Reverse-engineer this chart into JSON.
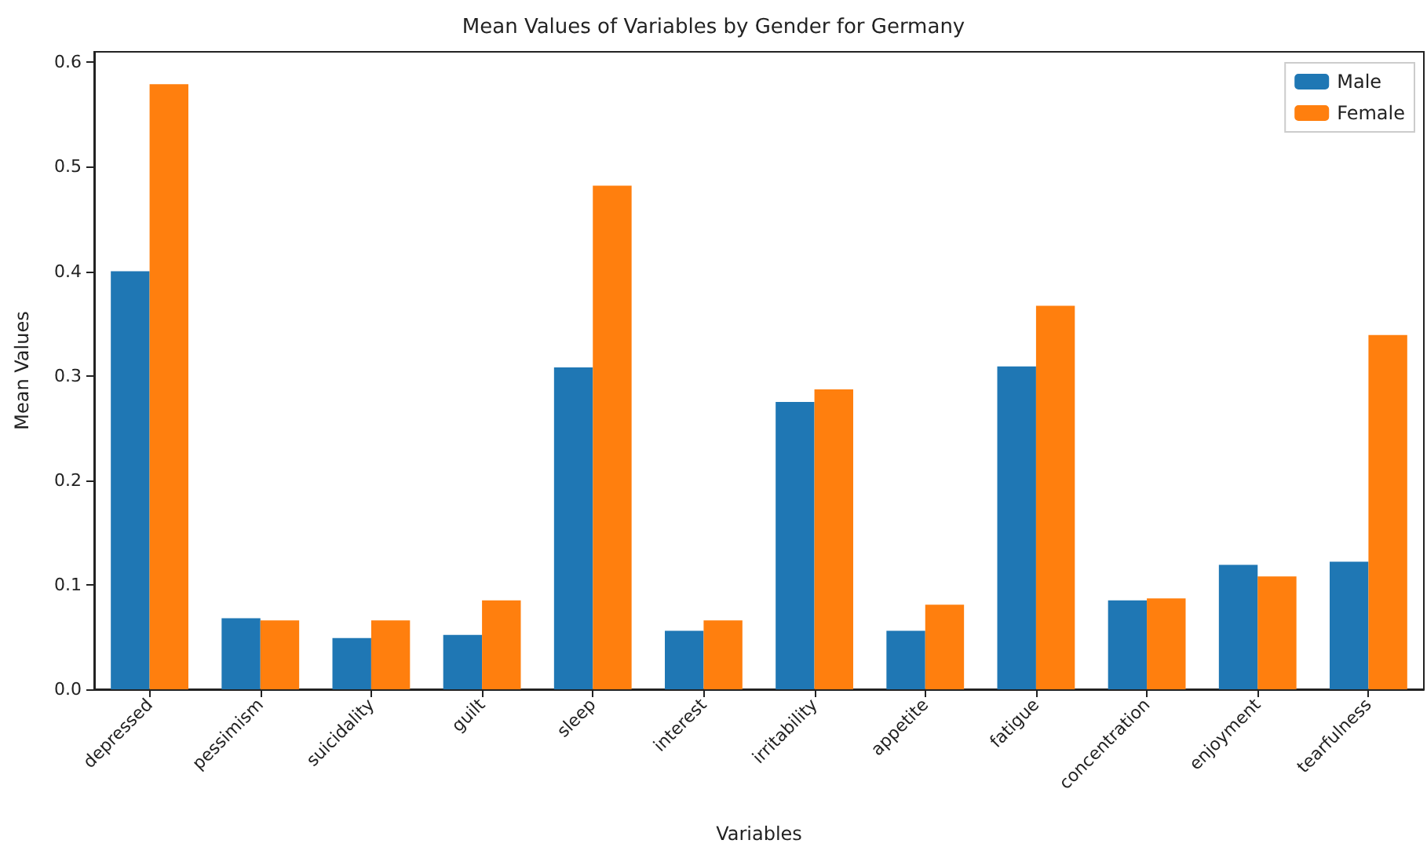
{
  "chart_data": {
    "type": "bar",
    "title": "Mean Values of Variables by Gender for Germany",
    "xlabel": "Variables",
    "ylabel": "Mean Values",
    "categories": [
      "depressed",
      "pessimism",
      "suicidality",
      "guilt",
      "sleep",
      "interest",
      "irritability",
      "appetite",
      "fatigue",
      "concentration",
      "enjoyment",
      "tearfulness"
    ],
    "series": [
      {
        "name": "Male",
        "color": "#1f77b4",
        "values": [
          0.4,
          0.068,
          0.049,
          0.052,
          0.308,
          0.056,
          0.275,
          0.056,
          0.309,
          0.085,
          0.119,
          0.122
        ]
      },
      {
        "name": "Female",
        "color": "#ff7f0e",
        "values": [
          0.579,
          0.066,
          0.066,
          0.085,
          0.482,
          0.066,
          0.287,
          0.081,
          0.367,
          0.087,
          0.108,
          0.339
        ]
      }
    ],
    "ylim": [
      0,
      0.61
    ],
    "yticks": [
      {
        "value": 0,
        "label": "0.0"
      },
      0.1,
      0.2,
      0.3,
      0.4,
      0.5,
      0.6
    ],
    "grid": false,
    "legend": "top right"
  }
}
